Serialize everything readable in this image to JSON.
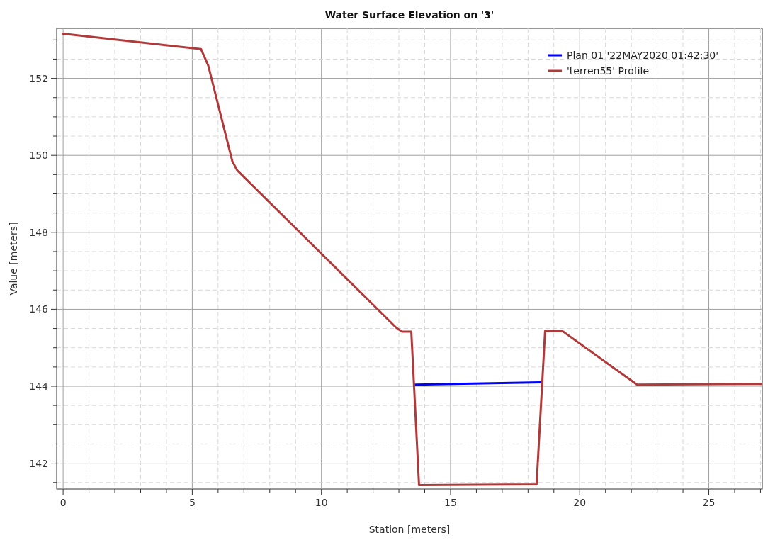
{
  "chart_data": {
    "type": "line",
    "title": "Water Surface Elevation on '3'",
    "xlabel": "Station [meters]",
    "ylabel": "Value [meters]",
    "xlim": [
      -0.25,
      27.07
    ],
    "ylim": [
      141.33,
      153.3
    ],
    "xticks": [
      0,
      {
        "value": 1,
        "label": null
      },
      {
        "value": 2,
        "label": null
      },
      {
        "value": 3,
        "label": null
      },
      {
        "value": 4,
        "label": null
      },
      5,
      {
        "value": 6,
        "label": null
      },
      {
        "value": 7,
        "label": null
      },
      {
        "value": 8,
        "label": null
      },
      {
        "value": 9,
        "label": null
      },
      10,
      {
        "value": 11,
        "label": null
      },
      {
        "value": 12,
        "label": null
      },
      {
        "value": 13,
        "label": null
      },
      {
        "value": 14,
        "label": null
      },
      15,
      {
        "value": 16,
        "label": null
      },
      {
        "value": 17,
        "label": null
      },
      {
        "value": 18,
        "label": null
      },
      {
        "value": 19,
        "label": null
      },
      20,
      {
        "value": 21,
        "label": null
      },
      {
        "value": 22,
        "label": null
      },
      {
        "value": 23,
        "label": null
      },
      {
        "value": 24,
        "label": null
      },
      25,
      {
        "value": 26,
        "label": null
      },
      {
        "value": 27,
        "label": null
      }
    ],
    "yticks": [
      {
        "value": 141.5,
        "label": null
      },
      142,
      {
        "value": 142.5,
        "label": null
      },
      {
        "value": 143,
        "label": null
      },
      {
        "value": 143.5,
        "label": null
      },
      144,
      {
        "value": 144.5,
        "label": null
      },
      {
        "value": 145,
        "label": null
      },
      {
        "value": 145.5,
        "label": null
      },
      146,
      {
        "value": 146.5,
        "label": null
      },
      {
        "value": 147,
        "label": null
      },
      {
        "value": 147.5,
        "label": null
      },
      148,
      {
        "value": 148.5,
        "label": null
      },
      {
        "value": 149,
        "label": null
      },
      {
        "value": 149.5,
        "label": null
      },
      150,
      {
        "value": 150.5,
        "label": null
      },
      {
        "value": 151,
        "label": null
      },
      {
        "value": 151.5,
        "label": null
      },
      152,
      {
        "value": 152.5,
        "label": null
      },
      {
        "value": 153,
        "label": null
      }
    ],
    "grid": true,
    "legend": "top right",
    "marker": "none",
    "line_style": "solid",
    "series": [
      {
        "name": "Plan 01  '22MAY2020 01:42:30'",
        "color": "#0000ff",
        "x": [
          13.64,
          18.49
        ],
        "values": [
          144.04,
          144.1
        ]
      },
      {
        "name": "'terren55' Profile",
        "color": "#b03a3a",
        "x": [
          0,
          5.34,
          5.62,
          6.55,
          6.74,
          12.9,
          13.12,
          13.48,
          13.78,
          18.33,
          18.66,
          19.34,
          22.22,
          27.07
        ],
        "values": [
          153.16,
          152.76,
          152.33,
          149.85,
          149.61,
          145.52,
          145.42,
          145.42,
          141.43,
          141.45,
          145.43,
          145.43,
          144.04,
          144.06
        ]
      }
    ]
  }
}
